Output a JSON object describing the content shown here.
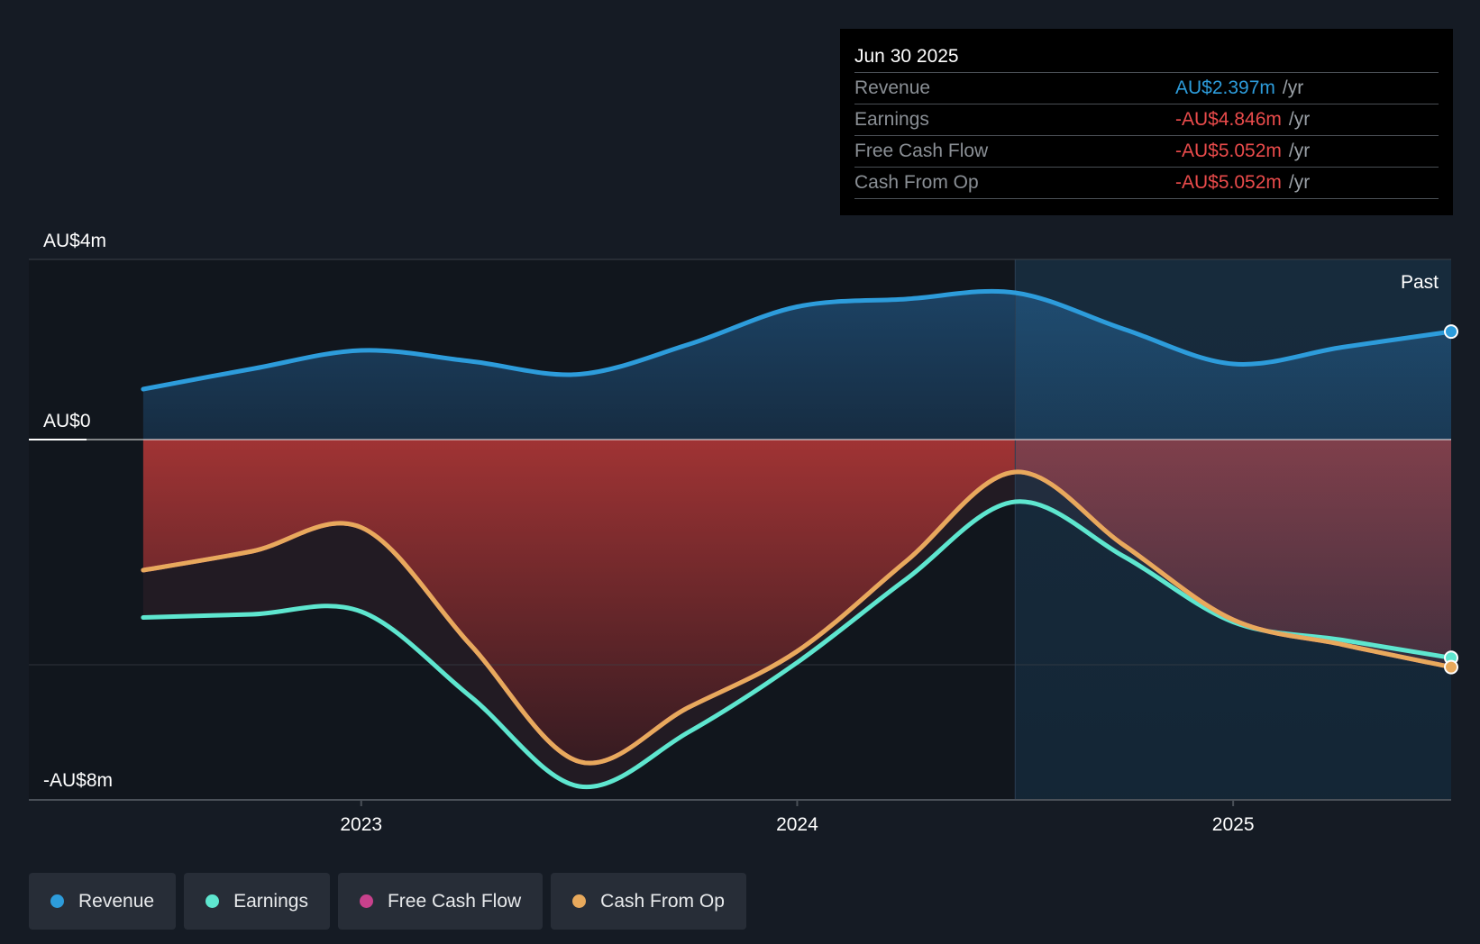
{
  "chart_data": {
    "type": "line",
    "x_unit": "year",
    "x_range": [
      2022.37,
      2025.5
    ],
    "ylim": [
      -8,
      4
    ],
    "y_ticks": [
      {
        "value": 4,
        "label": "AU$4m"
      },
      {
        "value": 0,
        "label": "AU$0"
      },
      {
        "value": -8,
        "label": "-AU$8m"
      }
    ],
    "x_ticks": [
      {
        "value": 2023.0,
        "label": "2023"
      },
      {
        "value": 2024.0,
        "label": "2024"
      },
      {
        "value": 2025.0,
        "label": "2025"
      }
    ],
    "past_start": 2024.5,
    "past_label": "Past",
    "series": [
      {
        "name": "Revenue",
        "color": "#2d9cdb",
        "points": [
          [
            2022.5,
            1.12
          ],
          [
            2022.75,
            1.57
          ],
          [
            2023.0,
            1.98
          ],
          [
            2023.25,
            1.74
          ],
          [
            2023.5,
            1.45
          ],
          [
            2023.75,
            2.11
          ],
          [
            2024.0,
            2.95
          ],
          [
            2024.25,
            3.12
          ],
          [
            2024.5,
            3.26
          ],
          [
            2024.75,
            2.45
          ],
          [
            2025.0,
            1.68
          ],
          [
            2025.25,
            2.05
          ],
          [
            2025.5,
            2.397
          ]
        ]
      },
      {
        "name": "Earnings",
        "color": "#5ee6cf",
        "points": [
          [
            2022.5,
            -3.95
          ],
          [
            2022.75,
            -3.88
          ],
          [
            2023.0,
            -3.82
          ],
          [
            2023.25,
            -5.7
          ],
          [
            2023.5,
            -7.7
          ],
          [
            2023.75,
            -6.5
          ],
          [
            2024.0,
            -4.95
          ],
          [
            2024.25,
            -3.1
          ],
          [
            2024.5,
            -1.38
          ],
          [
            2024.75,
            -2.6
          ],
          [
            2025.0,
            -4.05
          ],
          [
            2025.25,
            -4.45
          ],
          [
            2025.5,
            -4.846
          ]
        ]
      },
      {
        "name": "Free Cash Flow",
        "color": "#c8418c",
        "points": [
          [
            2022.5,
            -2.9
          ],
          [
            2022.75,
            -2.48
          ],
          [
            2023.0,
            -1.95
          ],
          [
            2023.25,
            -4.55
          ],
          [
            2023.5,
            -7.15
          ],
          [
            2023.75,
            -5.95
          ],
          [
            2024.0,
            -4.7
          ],
          [
            2024.25,
            -2.7
          ],
          [
            2024.5,
            -0.72
          ],
          [
            2024.75,
            -2.35
          ],
          [
            2025.0,
            -4.0
          ],
          [
            2025.25,
            -4.55
          ],
          [
            2025.5,
            -5.052
          ]
        ]
      },
      {
        "name": "Cash From Op",
        "color": "#e8a95c",
        "points": [
          [
            2022.5,
            -2.9
          ],
          [
            2022.75,
            -2.48
          ],
          [
            2023.0,
            -1.95
          ],
          [
            2023.25,
            -4.55
          ],
          [
            2023.5,
            -7.15
          ],
          [
            2023.75,
            -5.95
          ],
          [
            2024.0,
            -4.7
          ],
          [
            2024.25,
            -2.7
          ],
          [
            2024.5,
            -0.72
          ],
          [
            2024.75,
            -2.35
          ],
          [
            2025.0,
            -4.0
          ],
          [
            2025.25,
            -4.55
          ],
          [
            2025.5,
            -5.052
          ]
        ]
      }
    ]
  },
  "tooltip": {
    "date": "Jun 30 2025",
    "rows": [
      {
        "label": "Revenue",
        "value": "AU$2.397m",
        "unit": "/yr"
      },
      {
        "label": "Earnings",
        "value": "-AU$4.846m",
        "unit": "/yr"
      },
      {
        "label": "Free Cash Flow",
        "value": "-AU$5.052m",
        "unit": "/yr"
      },
      {
        "label": "Cash From Op",
        "value": "-AU$5.052m",
        "unit": "/yr"
      }
    ]
  },
  "legend": [
    {
      "label": "Revenue",
      "color": "#2d9cdb"
    },
    {
      "label": "Earnings",
      "color": "#5ee6cf"
    },
    {
      "label": "Free Cash Flow",
      "color": "#c8418c"
    },
    {
      "label": "Cash From Op",
      "color": "#e8a95c"
    }
  ]
}
